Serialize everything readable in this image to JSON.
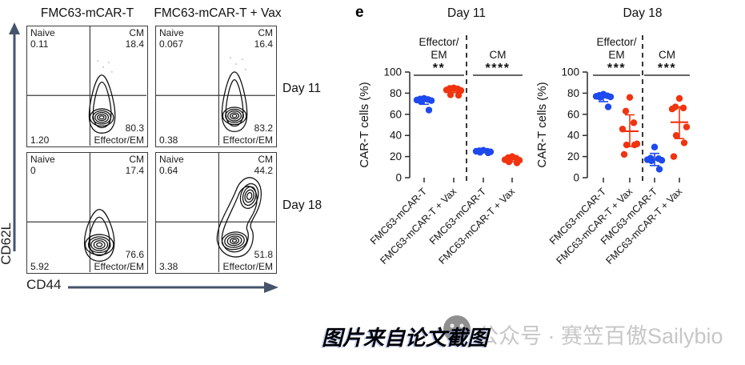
{
  "figure": {
    "panel_label": "e"
  },
  "flow": {
    "column_titles": [
      "FMC63-mCAR-T",
      "FMC63-mCAR-T + Vax"
    ],
    "row_labels": [
      "Day 11",
      "Day 18"
    ],
    "x_axis": "CD44",
    "y_axis": "CD62L",
    "quadrant_labels": {
      "naive": "Naive",
      "cm": "CM",
      "effector": "Effector/EM"
    },
    "panels": [
      {
        "naive": "0.11",
        "cm": "18.4",
        "effector": "80.3",
        "lower_left": "1.20"
      },
      {
        "naive": "0.067",
        "cm": "16.4",
        "effector": "83.2",
        "lower_left": "0.38"
      },
      {
        "naive": "0",
        "cm": "17.4",
        "effector": "76.6",
        "lower_left": "5.92"
      },
      {
        "naive": "0.64",
        "cm": "44.2",
        "effector": "51.8",
        "lower_left": "3.38"
      }
    ]
  },
  "chart_data": [
    {
      "type": "scatter",
      "title": "Day 11",
      "ylabel": "CAR-T cells (%)",
      "ylim": [
        0,
        100
      ],
      "yticks": [
        0,
        20,
        40,
        60,
        80,
        100
      ],
      "grid": false,
      "group_labels": [
        "Effector/EM",
        "CM"
      ],
      "significance": [
        "**",
        "****"
      ],
      "divider": "dashed-vertical-between-groups",
      "categories": [
        "FMC63-mCAR-T",
        "FMC63-mCAR-T + Vax",
        "FMC63-mCAR-T",
        "FMC63-mCAR-T + Vax"
      ],
      "series": [
        {
          "name": "FMC63-mCAR-T",
          "group": "Effector/EM",
          "color": "#1d49ef",
          "values": [
            75,
            74.5,
            74,
            73.5,
            73,
            72,
            64
          ],
          "mean": 72.3,
          "err_low": 69.5,
          "err_high": 75
        },
        {
          "name": "FMC63-mCAR-T + Vax",
          "group": "Effector/EM",
          "color": "#f1330f",
          "values": [
            85,
            84.5,
            84,
            83,
            82.5,
            78.5,
            78
          ],
          "mean": 82.2,
          "err_low": 80.5,
          "err_high": 84.5
        },
        {
          "name": "FMC63-mCAR-T",
          "group": "CM",
          "color": "#1d49ef",
          "values": [
            26,
            25.5,
            25,
            25,
            24.5,
            24,
            23.5
          ],
          "mean": 24.8,
          "err_low": 24,
          "err_high": 25.7
        },
        {
          "name": "FMC63-mCAR-T + Vax",
          "group": "CM",
          "color": "#f1330f",
          "values": [
            20,
            19,
            18.5,
            17,
            16.5,
            15,
            14
          ],
          "mean": 17.1,
          "err_low": 15,
          "err_high": 19.3
        }
      ]
    },
    {
      "type": "scatter",
      "title": "Day 18",
      "ylabel": "CAR-T cells (%)",
      "ylim": [
        0,
        100
      ],
      "yticks": [
        0,
        20,
        40,
        60,
        80,
        100
      ],
      "grid": false,
      "group_labels": [
        "Effector/EM",
        "CM"
      ],
      "significance": [
        "***",
        "***"
      ],
      "divider": "dashed-vertical-between-groups",
      "categories": [
        "FMC63-mCAR-T",
        "FMC63-mCAR-T + Vax",
        "FMC63-mCAR-T",
        "FMC63-mCAR-T + Vax"
      ],
      "series": [
        {
          "name": "FMC63-mCAR-T",
          "group": "Effector/EM",
          "color": "#1d49ef",
          "values": [
            79,
            78,
            77.5,
            77,
            76.5,
            76,
            67
          ],
          "mean": 75.9,
          "err_low": 72,
          "err_high": 79.5
        },
        {
          "name": "FMC63-mCAR-T + Vax",
          "group": "Effector/EM",
          "color": "#f1330f",
          "values": [
            76,
            63,
            52,
            46,
            32,
            31,
            31,
            22
          ],
          "mean": 44,
          "err_low": 29.5,
          "err_high": 59.5
        },
        {
          "name": "FMC63-mCAR-T",
          "group": "CM",
          "color": "#1d49ef",
          "values": [
            29,
            18.5,
            18,
            17,
            16.5,
            16,
            8
          ],
          "mean": 17,
          "err_low": 11.5,
          "err_high": 23
        },
        {
          "name": "FMC63-mCAR-T + Vax",
          "group": "CM",
          "color": "#f1330f",
          "values": [
            75,
            67,
            66,
            65,
            48,
            40,
            33,
            20
          ],
          "mean": 52.5,
          "err_low": 37,
          "err_high": 67
        }
      ]
    }
  ],
  "colors": {
    "car_t": "#1d49ef",
    "car_t_vax": "#f1330f",
    "axis_arrow": "#44546c",
    "watermark": "#c7c7c7"
  },
  "caption": "图片来自论文截图",
  "watermark": {
    "icon": "smiley-icon",
    "text": "公众号 · 赛笠百傲Sailybio"
  }
}
